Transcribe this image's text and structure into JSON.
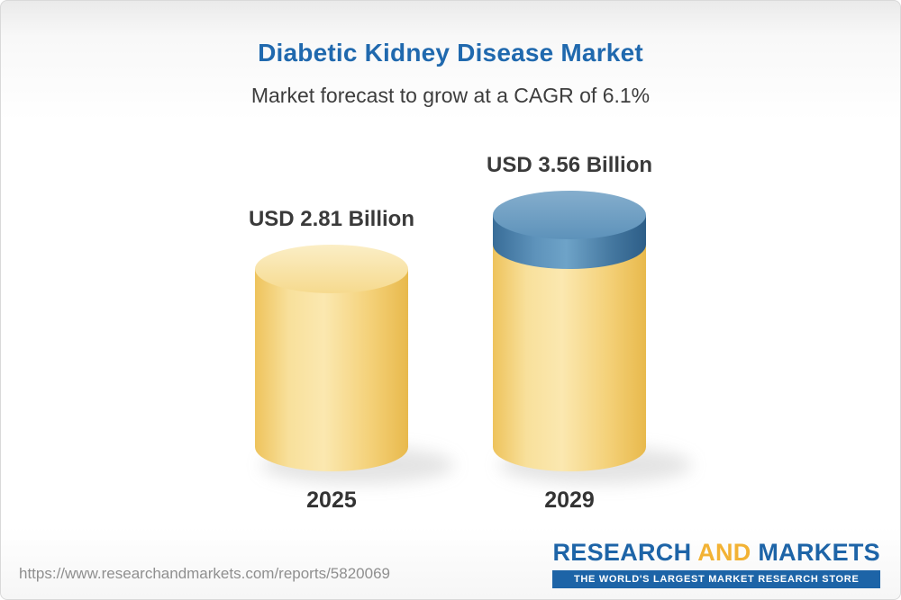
{
  "header": {
    "title": "Diabetic Kidney Disease Market",
    "subtitle": "Market forecast to grow at a CAGR of 6.1%"
  },
  "chart_data": {
    "type": "bar",
    "title": "Diabetic Kidney Disease Market",
    "subtitle": "Market forecast to grow at a CAGR of 6.1%",
    "unit": "USD Billion",
    "cagr": "6.1%",
    "categories": [
      "2025",
      "2029"
    ],
    "values": [
      2.81,
      3.56
    ],
    "ylim": [
      0,
      4
    ],
    "grid": false,
    "legend": false,
    "palette": {
      "bar_yellow": "#f4d179",
      "bar_blue": "#4d84ad",
      "title_blue": "#2069ae",
      "label_gray": "#3a3a3a"
    },
    "bars": [
      {
        "category": "2025",
        "value": 2.81,
        "label": "USD 2.81 Billion",
        "color": "#f4d179"
      },
      {
        "category": "2029",
        "value": 3.56,
        "label": "USD 3.56 Billion",
        "base_value": 2.81,
        "base_color": "#f4d179",
        "growth_color": "#4d84ad"
      }
    ]
  },
  "footer": {
    "url": "https://www.researchandmarkets.com/reports/5820069",
    "logo": {
      "part1": "RESEARCH",
      "part2": " AND ",
      "part3": "MARKETS",
      "tagline": "THE WORLD'S LARGEST MARKET RESEARCH STORE"
    }
  }
}
